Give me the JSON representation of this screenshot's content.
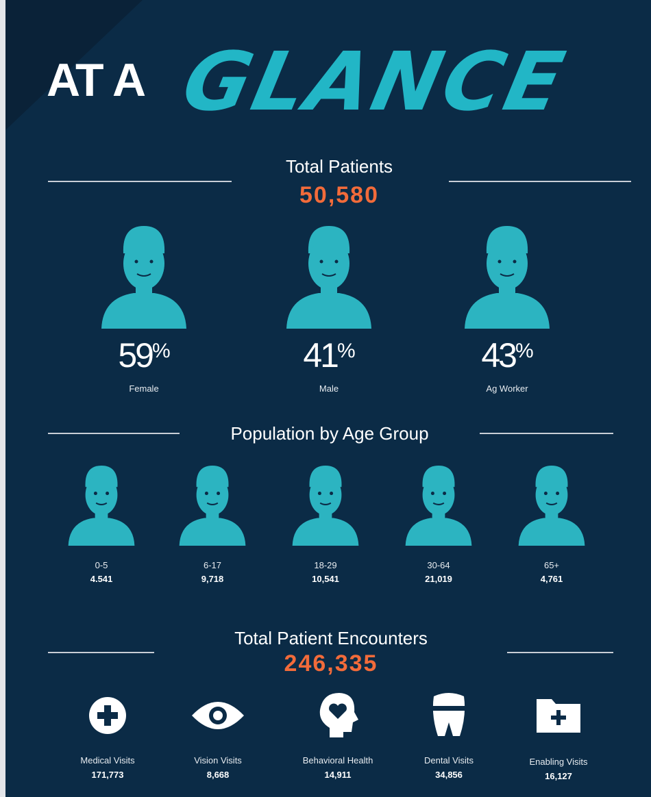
{
  "title": {
    "plain": "AT A",
    "script": "GLANCE"
  },
  "patients": {
    "heading": "Total Patients",
    "total": "50,580",
    "stats": [
      {
        "value": "59",
        "unit": "%",
        "label": "Female"
      },
      {
        "value": "41",
        "unit": "%",
        "label": "Male"
      },
      {
        "value": "43",
        "unit": "%",
        "label": "Ag Worker"
      }
    ]
  },
  "age": {
    "heading": "Population by Age Group",
    "groups": [
      {
        "label": "0-5",
        "value": "4.541"
      },
      {
        "label": "6-17",
        "value": "9,718"
      },
      {
        "label": "18-29",
        "value": "10,541"
      },
      {
        "label": "30-64",
        "value": "21,019"
      },
      {
        "label": "65+",
        "value": "4,761"
      }
    ]
  },
  "encounters": {
    "heading": "Total Patient Encounters",
    "total": "246,335",
    "types": [
      {
        "label": "Medical Visits",
        "value": "171,773"
      },
      {
        "label": "Vision Visits",
        "value": "8,668"
      },
      {
        "label": "Behavioral Health",
        "value": "14,911"
      },
      {
        "label": "Dental Visits",
        "value": "34,856"
      },
      {
        "label": "Enabling Visits",
        "value": "16,127"
      }
    ]
  }
}
